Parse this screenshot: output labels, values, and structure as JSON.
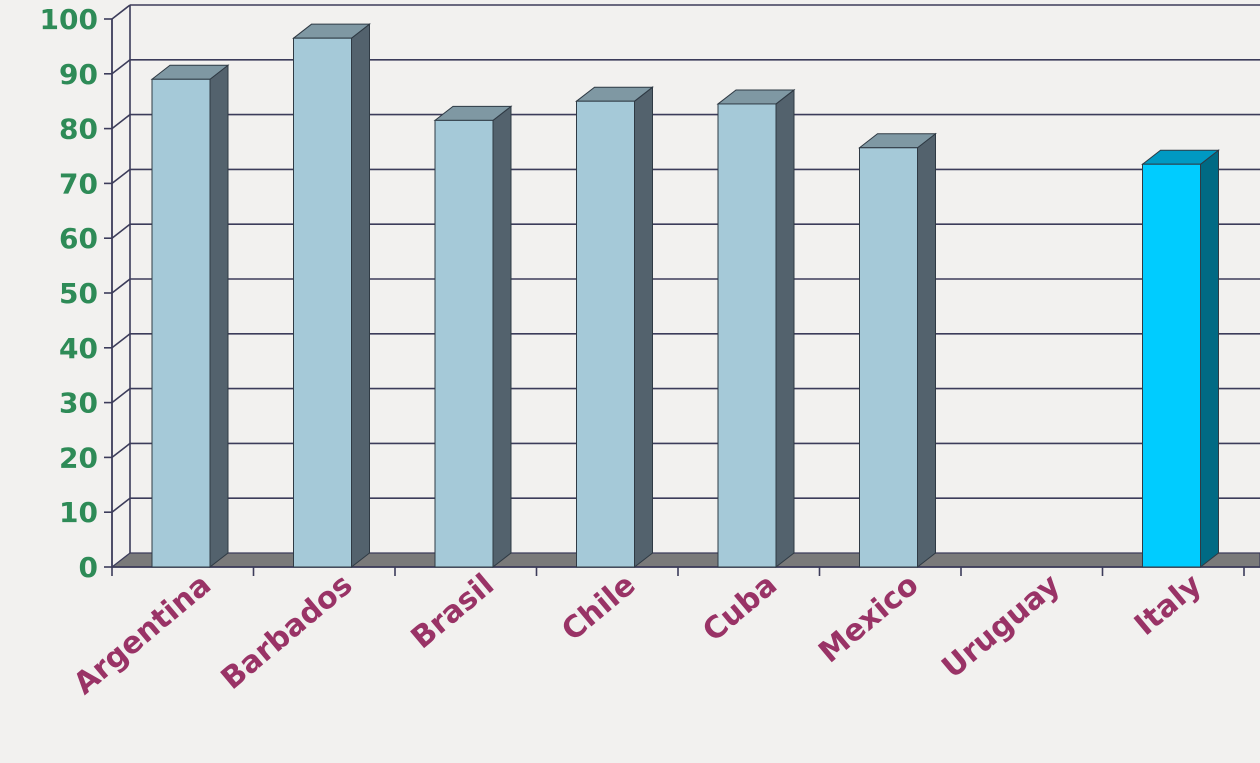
{
  "chart_data": {
    "type": "bar",
    "categories": [
      "Argentina",
      "Barbados",
      "Brasil",
      "Chile",
      "Cuba",
      "Mexico",
      "Uruguay",
      "Italy"
    ],
    "values": [
      89,
      96.5,
      81.5,
      85,
      84.5,
      76.5,
      null,
      73.5
    ],
    "ylim": [
      0,
      100
    ],
    "yticks": [
      0,
      10,
      20,
      30,
      40,
      50,
      60,
      70,
      80,
      90,
      100
    ],
    "grid": true,
    "legend": "none",
    "colors": {
      "bar_front": "#a5c9d8",
      "bar_side": "#53626d",
      "bar_top": "#7f98a3",
      "highlight_front": "#00ccff",
      "highlight_side": "#006a84",
      "highlight_top": "#0099c2",
      "highlight_category": "Italy",
      "ytick_label": "#2e8b57",
      "xtick_label": "#993366",
      "floor": "#7a7a7a",
      "gridline": "#3c3c5a",
      "axis": "#3c3c5a",
      "background": "#f2f1ef"
    }
  }
}
